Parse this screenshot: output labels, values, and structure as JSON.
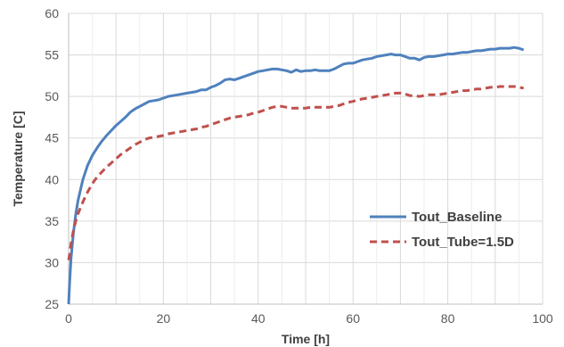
{
  "chart_data": {
    "type": "line",
    "title": "",
    "xlabel": "Time [h]",
    "ylabel": "Temperature [C]",
    "xlim": [
      0,
      100
    ],
    "ylim": [
      25,
      60
    ],
    "xticks": [
      0,
      20,
      40,
      60,
      80,
      100
    ],
    "yticks": [
      25,
      30,
      35,
      40,
      45,
      50,
      55,
      60
    ],
    "grid": true,
    "legend_position": "lower-right",
    "series": [
      {
        "name": "Tout_Baseline",
        "color": "#4F81BD",
        "dash": "solid",
        "x": [
          0,
          0.2,
          0.5,
          1,
          1.5,
          2,
          3,
          4,
          5,
          6,
          7,
          8,
          9,
          10,
          11,
          12,
          13,
          14,
          15,
          16,
          17,
          18,
          19,
          20,
          21,
          22,
          23,
          24,
          25,
          26,
          27,
          28,
          29,
          30,
          31,
          32,
          33,
          34,
          35,
          36,
          37,
          38,
          39,
          40,
          41,
          42,
          43,
          44,
          45,
          46,
          47,
          48,
          49,
          50,
          51,
          52,
          53,
          54,
          55,
          56,
          57,
          58,
          59,
          60,
          61,
          62,
          63,
          64,
          65,
          66,
          67,
          68,
          69,
          70,
          71,
          72,
          73,
          74,
          75,
          76,
          77,
          78,
          79,
          80,
          81,
          82,
          83,
          84,
          85,
          86,
          87,
          88,
          89,
          90,
          91,
          92,
          93,
          94,
          95,
          96
        ],
        "y": [
          25.0,
          27.5,
          30.5,
          33.5,
          35.8,
          37.5,
          40.0,
          41.7,
          42.9,
          43.8,
          44.6,
          45.3,
          45.9,
          46.5,
          47.0,
          47.5,
          48.1,
          48.5,
          48.8,
          49.1,
          49.4,
          49.5,
          49.6,
          49.8,
          50.0,
          50.1,
          50.2,
          50.3,
          50.4,
          50.5,
          50.6,
          50.8,
          50.8,
          51.1,
          51.3,
          51.6,
          52.0,
          52.1,
          52.0,
          52.2,
          52.4,
          52.6,
          52.8,
          53.0,
          53.1,
          53.2,
          53.3,
          53.3,
          53.2,
          53.1,
          52.9,
          53.2,
          53.0,
          53.1,
          53.1,
          53.2,
          53.1,
          53.1,
          53.1,
          53.3,
          53.6,
          53.9,
          54.0,
          54.0,
          54.2,
          54.4,
          54.5,
          54.6,
          54.8,
          54.9,
          55.0,
          55.1,
          55.0,
          55.0,
          54.8,
          54.6,
          54.6,
          54.4,
          54.7,
          54.8,
          54.8,
          54.9,
          55.0,
          55.1,
          55.1,
          55.2,
          55.3,
          55.3,
          55.4,
          55.5,
          55.5,
          55.6,
          55.7,
          55.7,
          55.8,
          55.8,
          55.8,
          55.9,
          55.8,
          55.6
        ]
      },
      {
        "name": "Tout_Tube=1.5D",
        "color": "#C0504D",
        "dash": "dashed",
        "x": [
          0,
          0.2,
          0.5,
          1,
          1.5,
          2,
          3,
          4,
          5,
          6,
          7,
          8,
          9,
          10,
          11,
          12,
          13,
          14,
          15,
          16,
          17,
          18,
          19,
          20,
          21,
          22,
          23,
          24,
          25,
          26,
          27,
          28,
          29,
          30,
          31,
          32,
          33,
          34,
          35,
          36,
          37,
          38,
          39,
          40,
          41,
          42,
          43,
          44,
          45,
          46,
          47,
          48,
          49,
          50,
          51,
          52,
          53,
          54,
          55,
          56,
          57,
          58,
          59,
          60,
          61,
          62,
          63,
          64,
          65,
          66,
          67,
          68,
          69,
          70,
          71,
          72,
          73,
          74,
          75,
          76,
          77,
          78,
          79,
          80,
          81,
          82,
          83,
          84,
          85,
          86,
          87,
          88,
          89,
          90,
          91,
          92,
          93,
          94,
          95,
          96
        ],
        "y": [
          30.3,
          31.0,
          32.3,
          33.8,
          35.0,
          35.9,
          37.3,
          38.5,
          39.5,
          40.3,
          40.9,
          41.5,
          42.0,
          42.5,
          43.0,
          43.4,
          43.8,
          44.2,
          44.5,
          44.8,
          45.0,
          45.1,
          45.2,
          45.3,
          45.5,
          45.6,
          45.7,
          45.8,
          45.9,
          46.0,
          46.1,
          46.3,
          46.4,
          46.6,
          46.8,
          47.0,
          47.2,
          47.4,
          47.5,
          47.6,
          47.7,
          47.8,
          48.0,
          48.1,
          48.3,
          48.5,
          48.7,
          48.8,
          48.8,
          48.7,
          48.6,
          48.6,
          48.6,
          48.6,
          48.7,
          48.7,
          48.7,
          48.7,
          48.7,
          48.8,
          48.9,
          49.1,
          49.3,
          49.4,
          49.6,
          49.7,
          49.8,
          49.9,
          50.0,
          50.1,
          50.2,
          50.3,
          50.4,
          50.4,
          50.3,
          50.1,
          50.1,
          50.0,
          50.1,
          50.2,
          50.2,
          50.2,
          50.3,
          50.4,
          50.5,
          50.6,
          50.7,
          50.7,
          50.8,
          50.9,
          50.9,
          51.0,
          51.1,
          51.1,
          51.2,
          51.2,
          51.2,
          51.2,
          51.1,
          51.0
        ]
      }
    ]
  }
}
